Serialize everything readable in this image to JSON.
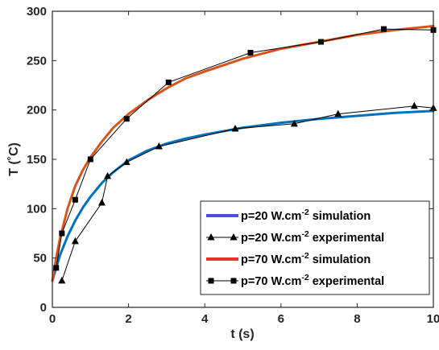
{
  "chart_data": {
    "type": "line",
    "xlabel": "t (s)",
    "ylabel": "T (˚C)",
    "xlim": [
      0,
      10
    ],
    "ylim": [
      0,
      300
    ],
    "xticks": [
      0,
      2,
      4,
      6,
      8,
      10
    ],
    "yticks": [
      0,
      50,
      100,
      150,
      200,
      250,
      300
    ],
    "grid": false,
    "legend_position": "bottom-right",
    "series": [
      {
        "name": "p=20 W.cm-2 simulation",
        "legend": {
          "prefix": "p=20 W.cm",
          "sup": "-2",
          "suffix": " simulation"
        },
        "style": "curve",
        "color": "#0072BD",
        "legend_color": "#4A4FE0",
        "x": [
          0,
          0.1,
          0.2,
          0.4,
          0.6,
          0.8,
          1.0,
          1.3,
          1.6,
          2.0,
          2.5,
          3.0,
          3.5,
          4.0,
          5.0,
          6.0,
          7.0,
          8.0,
          9.0,
          10.0
        ],
        "y": [
          27,
          40,
          53,
          72,
          88,
          101,
          112,
          126,
          137,
          149,
          159,
          166,
          171,
          175,
          182,
          187,
          191,
          194,
          197,
          199
        ]
      },
      {
        "name": "p=20 W.cm-2 experimental",
        "legend": {
          "prefix": "p=20 W.cm",
          "sup": "-2",
          "suffix": " experimental"
        },
        "style": "markers-line",
        "marker": "triangle",
        "color": "#000000",
        "x": [
          0.25,
          0.6,
          1.3,
          1.45,
          1.95,
          2.8,
          4.8,
          6.35,
          7.5,
          9.5,
          10.0
        ],
        "y": [
          27,
          67,
          106,
          133,
          147,
          163,
          181,
          186,
          196,
          204,
          202
        ]
      },
      {
        "name": "p=70 W.cm-2 simulation",
        "legend": {
          "prefix": "p=70 W.cm",
          "sup": "-2",
          "suffix": " simulation"
        },
        "style": "curve",
        "color": "#D95319",
        "legend_color": "#E8332B",
        "x": [
          0,
          0.1,
          0.2,
          0.4,
          0.6,
          0.8,
          1.0,
          1.3,
          1.6,
          2.0,
          2.5,
          3.0,
          3.5,
          4.0,
          5.0,
          6.0,
          7.0,
          8.0,
          9.0,
          10.0
        ],
        "y": [
          27,
          50,
          70,
          100,
          123,
          139,
          152,
          168,
          182,
          196,
          210,
          222,
          232,
          239,
          252,
          262,
          269,
          276,
          281,
          285
        ]
      },
      {
        "name": "p=70 W.cm-2 experimental",
        "legend": {
          "prefix": "p=70 W.cm",
          "sup": "-2",
          "suffix": " experimental"
        },
        "style": "markers-line",
        "marker": "square",
        "color": "#000000",
        "x": [
          0.1,
          0.25,
          0.6,
          1.0,
          1.95,
          3.05,
          5.2,
          7.05,
          8.7,
          10.0
        ],
        "y": [
          40,
          75,
          109,
          150,
          191,
          228,
          258,
          269,
          282,
          281
        ]
      }
    ]
  }
}
